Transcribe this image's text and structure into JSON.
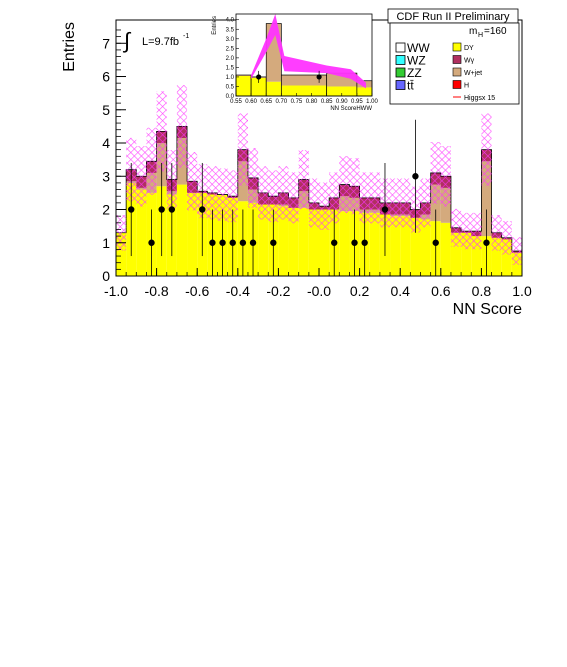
{
  "chart_data": [
    {
      "type": "bar",
      "subtype": "stacked-histogram",
      "title": "CDF Run II Preliminary",
      "xlabel": "NN Score",
      "ylabel": "Entries",
      "xlim": [
        -1.0,
        1.0
      ],
      "ylim": [
        0,
        7.7
      ],
      "x_ticks": [
        "-1.0",
        "-0.8",
        "-0.6",
        "-0.4",
        "-0.2",
        "-0.0",
        "0.2",
        "0.4",
        "0.6",
        "0.8",
        "1.0"
      ],
      "y_ticks": [
        "0",
        "1",
        "2",
        "3",
        "4",
        "5",
        "6",
        "7"
      ],
      "bin_edges_start": -1.0,
      "bin_width": 0.05,
      "annotations": {
        "luminosity": "L=9.7fb",
        "luminosity_exp": "-1",
        "integral_symbol": "∫",
        "mass": "m",
        "mass_sub": "H",
        "mass_val": "=160"
      },
      "series_colors": {
        "DY": "#ffff00",
        "Wgamma": "#b03060",
        "Wjet": "#d4aa7d",
        "Higgs": "#ff0000",
        "uncertainty": "#ff33ff"
      },
      "background_total": [
        1.3,
        3.2,
        3.0,
        3.45,
        4.35,
        2.9,
        4.5,
        2.85,
        2.55,
        2.5,
        2.45,
        2.4,
        3.8,
        2.95,
        2.5,
        2.4,
        2.5,
        2.35,
        2.9,
        2.2,
        2.1,
        2.35,
        2.75,
        2.7,
        2.35,
        2.35,
        2.2,
        2.2,
        2.2,
        2.0,
        2.2,
        3.1,
        3.0,
        1.45,
        1.35,
        1.35,
        3.8,
        1.3,
        1.15,
        0.75
      ],
      "dy_component": [
        1.3,
        2.8,
        2.6,
        2.5,
        2.7,
        2.45,
        2.75,
        2.5,
        2.5,
        2.45,
        2.45,
        2.35,
        2.25,
        2.2,
        2.15,
        2.15,
        2.1,
        2.05,
        2.05,
        2.0,
        2.0,
        2.0,
        1.95,
        1.95,
        1.9,
        1.9,
        1.85,
        1.8,
        1.8,
        1.75,
        1.7,
        1.65,
        1.6,
        1.3,
        1.3,
        1.2,
        1.2,
        1.15,
        1.1,
        0.7
      ],
      "data_points": [
        {
          "x": -0.925,
          "y": 2,
          "err": 1.4
        },
        {
          "x": -0.825,
          "y": 1,
          "err": 1.0
        },
        {
          "x": -0.775,
          "y": 2,
          "err": 1.4
        },
        {
          "x": -0.725,
          "y": 2,
          "err": 1.4
        },
        {
          "x": -0.575,
          "y": 2,
          "err": 1.4
        },
        {
          "x": -0.525,
          "y": 1,
          "err": 1.0
        },
        {
          "x": -0.475,
          "y": 1,
          "err": 1.0
        },
        {
          "x": -0.425,
          "y": 1,
          "err": 1.0
        },
        {
          "x": -0.375,
          "y": 1,
          "err": 1.0
        },
        {
          "x": -0.325,
          "y": 1,
          "err": 1.0
        },
        {
          "x": -0.225,
          "y": 1,
          "err": 1.0
        },
        {
          "x": 0.075,
          "y": 1,
          "err": 1.0
        },
        {
          "x": 0.175,
          "y": 1,
          "err": 1.0
        },
        {
          "x": 0.225,
          "y": 1,
          "err": 1.0
        },
        {
          "x": 0.325,
          "y": 2,
          "err": 1.4
        },
        {
          "x": 0.475,
          "y": 3,
          "err": 1.7
        },
        {
          "x": 0.575,
          "y": 1,
          "err": 1.0
        },
        {
          "x": 0.825,
          "y": 1,
          "err": 1.0
        }
      ]
    },
    {
      "type": "bar",
      "subtype": "inset-histogram",
      "xlabel": "NN ScoreHWW",
      "ylabel": "Entries",
      "xlim": [
        0.55,
        1.0
      ],
      "ylim": [
        0,
        4.3
      ],
      "x_ticks": [
        "0.55",
        "0.60",
        "0.65",
        "0.70",
        "0.75",
        "0.80",
        "0.85",
        "0.90",
        "0.95",
        "1.00"
      ],
      "y_ticks": [
        "0.0",
        "0.5",
        "1.0",
        "1.5",
        "2.0",
        "2.5",
        "3.0",
        "3.5",
        "4.0"
      ],
      "bin_edges": [
        0.55,
        0.6,
        0.65,
        0.7,
        0.85,
        0.95,
        1.0
      ],
      "background_total": [
        1.1,
        1.0,
        3.8,
        1.1,
        1.2,
        0.8
      ],
      "dy_component": [
        1.05,
        0.95,
        0.75,
        0.55,
        0.5,
        0.45
      ],
      "uncertainty_band": [
        {
          "x": 0.6,
          "lo": 0.9,
          "hi": 1.1
        },
        {
          "x": 0.65,
          "lo": 2.3,
          "hi": 3.0
        },
        {
          "x": 0.68,
          "lo": 3.2,
          "hi": 4.3
        },
        {
          "x": 0.71,
          "lo": 1.3,
          "hi": 2.1
        },
        {
          "x": 0.85,
          "lo": 1.2,
          "hi": 1.6
        },
        {
          "x": 0.93,
          "lo": 0.9,
          "hi": 1.4
        },
        {
          "x": 0.98,
          "lo": 0.4,
          "hi": 0.7
        }
      ],
      "data_points": [
        {
          "x": 0.625,
          "y": 1
        },
        {
          "x": 0.825,
          "y": 1
        }
      ]
    }
  ],
  "legend": [
    {
      "label": "WW",
      "color": "#ffffff",
      "size": "big"
    },
    {
      "label": "DY",
      "color": "#ffff00",
      "size": "small"
    },
    {
      "label": "WZ",
      "color": "#33ffff",
      "size": "big"
    },
    {
      "label": "Wγ",
      "color": "#b03060",
      "size": "small"
    },
    {
      "label": "ZZ",
      "color": "#33cc33",
      "size": "big"
    },
    {
      "label": "W+jet",
      "color": "#d4aa7d",
      "size": "small"
    },
    {
      "label": "tt̄",
      "color": "#6666ff",
      "size": "big"
    },
    {
      "label": "H",
      "color": "#ff0000",
      "size": "small"
    },
    {
      "label": "",
      "color": "#ffffff",
      "size": "big"
    },
    {
      "label": "Higgsx 15",
      "color": "#ff0000",
      "size": "small",
      "line": true
    }
  ]
}
